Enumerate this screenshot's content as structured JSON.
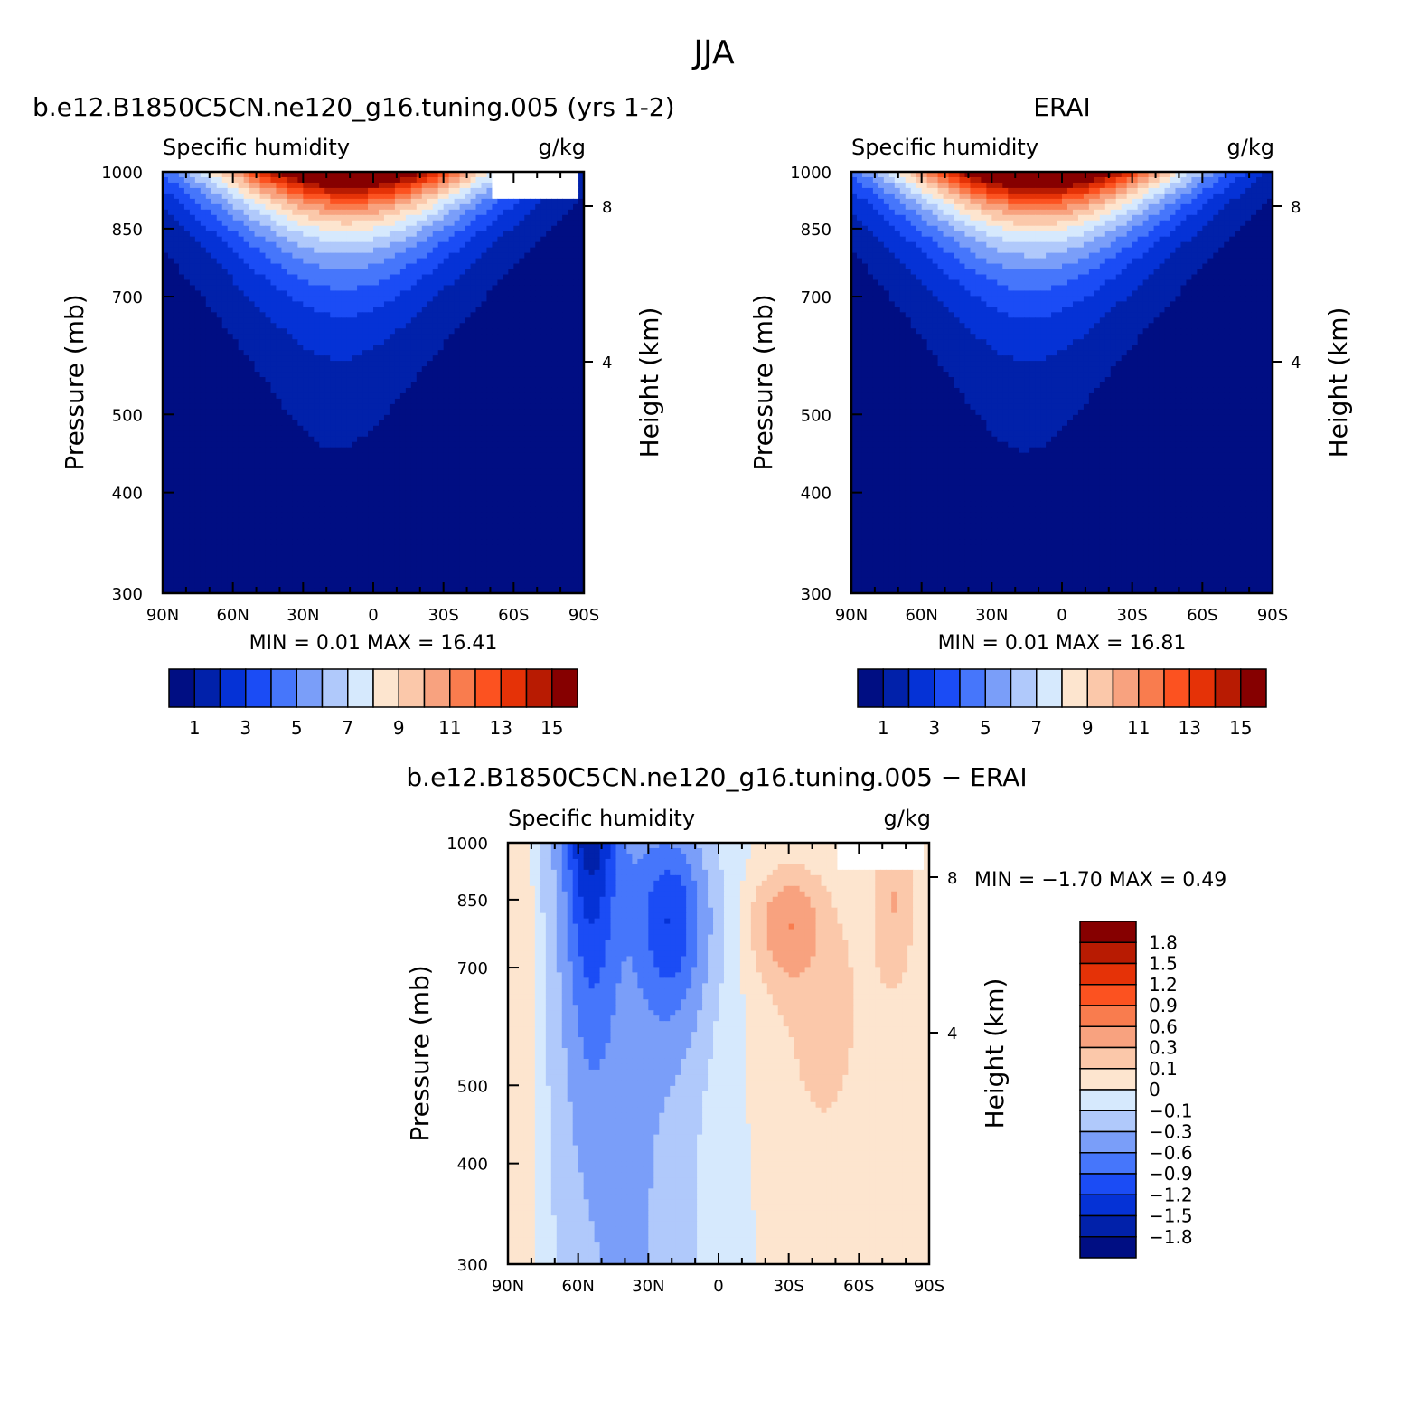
{
  "figure": {
    "title": "JJA"
  },
  "chart_data": [
    {
      "type": "heatmap",
      "panel": "top-left",
      "title": "b.e12.B1850C5CN.ne120_g16.tuning.005 (yrs 1-2)",
      "variable_label": "Specific humidity",
      "units_label": "g/kg",
      "xlabel": "",
      "ylabel": "Pressure (mb)",
      "ylabel_right": "Height (km)",
      "x_ticks": [
        "90N",
        "60N",
        "30N",
        "0",
        "30S",
        "60S",
        "90S"
      ],
      "y_ticks": [
        "300",
        "400",
        "500",
        "700",
        "850",
        "1000"
      ],
      "right_ticks": [
        "8",
        "4"
      ],
      "xlim": [
        90,
        -90
      ],
      "ylim": [
        1000,
        300
      ],
      "y_scale": "log-pressure",
      "min_max_text": "MIN =    0.01   MAX =   16.41",
      "min": 0.01,
      "max": 16.41,
      "field": "moist_model",
      "missing_region": "below surface near 60S-90S",
      "levels": [
        1,
        2,
        3,
        4,
        5,
        6,
        7,
        8,
        9,
        10,
        11,
        12,
        13,
        14,
        15
      ],
      "colorbar_labels": [
        "1",
        "3",
        "5",
        "7",
        "9",
        "11",
        "13",
        "15"
      ],
      "colorbar_orientation": "horizontal"
    },
    {
      "type": "heatmap",
      "panel": "top-right",
      "title": "ERAI",
      "variable_label": "Specific humidity",
      "units_label": "g/kg",
      "xlabel": "",
      "ylabel": "Pressure (mb)",
      "ylabel_right": "Height (km)",
      "x_ticks": [
        "90N",
        "60N",
        "30N",
        "0",
        "30S",
        "60S",
        "90S"
      ],
      "y_ticks": [
        "300",
        "400",
        "500",
        "700",
        "850",
        "1000"
      ],
      "right_ticks": [
        "8",
        "4"
      ],
      "xlim": [
        90,
        -90
      ],
      "ylim": [
        1000,
        300
      ],
      "y_scale": "log-pressure",
      "min_max_text": "MIN =    0.01   MAX =   16.81",
      "min": 0.01,
      "max": 16.81,
      "field": "moist_obs",
      "levels": [
        1,
        2,
        3,
        4,
        5,
        6,
        7,
        8,
        9,
        10,
        11,
        12,
        13,
        14,
        15
      ],
      "colorbar_labels": [
        "1",
        "3",
        "5",
        "7",
        "9",
        "11",
        "13",
        "15"
      ],
      "colorbar_orientation": "horizontal"
    },
    {
      "type": "heatmap",
      "panel": "bottom",
      "title": "b.e12.B1850C5CN.ne120_g16.tuning.005 − ERAI",
      "variable_label": "Specific humidity",
      "units_label": "g/kg",
      "xlabel": "",
      "ylabel": "Pressure (mb)",
      "ylabel_right": "Height (km)",
      "x_ticks": [
        "90N",
        "60N",
        "30N",
        "0",
        "30S",
        "60S",
        "90S"
      ],
      "y_ticks": [
        "300",
        "400",
        "500",
        "700",
        "850",
        "1000"
      ],
      "right_ticks": [
        "8",
        "4"
      ],
      "xlim": [
        90,
        -90
      ],
      "ylim": [
        1000,
        300
      ],
      "y_scale": "log-pressure",
      "min_max_text": "MIN =  −1.70   MAX =    0.49",
      "min": -1.7,
      "max": 0.49,
      "field": "diff",
      "missing_region": "below surface near 60S-90S",
      "levels": [
        -1.8,
        -1.5,
        -1.2,
        -0.9,
        -0.6,
        -0.3,
        -0.1,
        0,
        0.1,
        0.3,
        0.6,
        0.9,
        1.2,
        1.5,
        1.8
      ],
      "colorbar_labels": [
        "1.8",
        "1.5",
        "1.2",
        "0.9",
        "0.6",
        "0.3",
        "0.1",
        "0",
        "−0.1",
        "−0.3",
        "−0.6",
        "−0.9",
        "−1.2",
        "−1.5",
        "−1.8"
      ],
      "colorbar_orientation": "vertical"
    }
  ],
  "colors": {
    "palette": [
      "#000e83",
      "#0121aa",
      "#0532d6",
      "#1b4cf5",
      "#4676fb",
      "#7a9ef9",
      "#b0c9fb",
      "#d6e9fd",
      "#fde5cf",
      "#fbc8aa",
      "#f8a27f",
      "#f97c4e",
      "#fc5220",
      "#e53207",
      "#b81b02",
      "#860000"
    ],
    "missing": "#ffffff"
  }
}
